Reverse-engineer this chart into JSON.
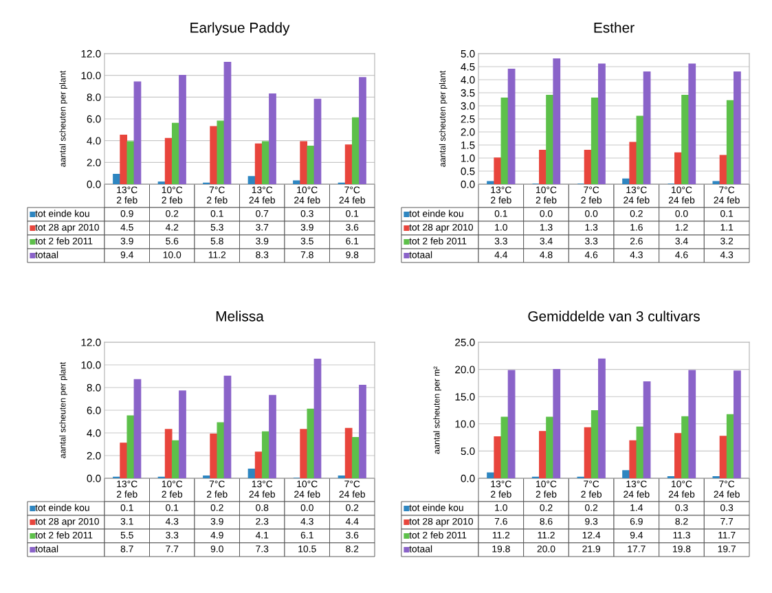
{
  "chart_data": [
    {
      "type": "bar",
      "title": "Earlysue Paddy",
      "ylabel": "aantal scheuten per plant",
      "categories": [
        "13°C\n2 feb",
        "10°C\n2 feb",
        "7°C\n2 feb",
        "13°C\n24 feb",
        "10°C\n24 feb",
        "7°C\n24 feb"
      ],
      "ylim": [
        0,
        12
      ],
      "yticks": [
        {
          "value": 0,
          "label": "0.0"
        },
        {
          "value": 2,
          "label": "2.0"
        },
        {
          "value": 4,
          "label": "4.0"
        },
        {
          "value": 6,
          "label": "6.0"
        },
        {
          "value": 8,
          "label": "8.0"
        },
        {
          "value": 10,
          "label": "10.0"
        },
        {
          "value": 12,
          "label": "12.0"
        }
      ],
      "grid": "y",
      "legend": "bottom left",
      "series": [
        {
          "name": "tot einde kou",
          "color": "#2e86c1",
          "values": [
            0.9,
            0.2,
            0.1,
            0.7,
            0.3,
            0.1
          ],
          "value_labels": [
            "0.9",
            "0.2",
            "0.1",
            "0.7",
            "0.3",
            "0.1"
          ]
        },
        {
          "name": "tot 28 apr 2010",
          "color": "#e8453c",
          "values": [
            4.5,
            4.2,
            5.3,
            3.7,
            3.9,
            3.6
          ],
          "value_labels": [
            "4.5",
            "4.2",
            "5.3",
            "3.7",
            "3.9",
            "3.6"
          ]
        },
        {
          "name": "tot 2 feb 2011",
          "color": "#5dc04a",
          "values": [
            3.9,
            5.6,
            5.8,
            3.9,
            3.5,
            6.1
          ],
          "value_labels": [
            "3.9",
            "5.6",
            "5.8",
            "3.9",
            "3.5",
            "6.1"
          ]
        },
        {
          "name": "totaal",
          "color": "#8a63c9",
          "values": [
            9.4,
            10.0,
            11.2,
            8.3,
            7.8,
            9.8
          ],
          "value_labels": [
            "9.4",
            "10.0",
            "11.2",
            "8.3",
            "7.8",
            "9.8"
          ]
        }
      ]
    },
    {
      "type": "bar",
      "title": "Esther",
      "ylabel": "aantal scheuten per plant",
      "categories": [
        "13°C\n2 feb",
        "10°C\n2 feb",
        "7°C\n2 feb",
        "13°C\n24 feb",
        "10°C\n24 feb",
        "7°C\n24 feb"
      ],
      "ylim": [
        0,
        5
      ],
      "yticks": [
        {
          "value": 0,
          "label": "0.0"
        },
        {
          "value": 0.5,
          "label": "0.5"
        },
        {
          "value": 1,
          "label": "1.0"
        },
        {
          "value": 1.5,
          "label": "1.5"
        },
        {
          "value": 2,
          "label": "2.0"
        },
        {
          "value": 2.5,
          "label": "2.5"
        },
        {
          "value": 3,
          "label": "3.0"
        },
        {
          "value": 3.5,
          "label": "3.5"
        },
        {
          "value": 4,
          "label": "4.0"
        },
        {
          "value": 4.5,
          "label": "4.5"
        },
        {
          "value": 5,
          "label": "5.0"
        }
      ],
      "grid": "y",
      "legend": "bottom left",
      "series": [
        {
          "name": "tot einde kou",
          "color": "#2e86c1",
          "values": [
            0.1,
            0.0,
            0.0,
            0.2,
            0.0,
            0.1
          ],
          "value_labels": [
            "0.1",
            "0.0",
            "0.0",
            "0.2",
            "0.0",
            "0.1"
          ]
        },
        {
          "name": "tot 28 apr 2010",
          "color": "#e8453c",
          "values": [
            1.0,
            1.3,
            1.3,
            1.6,
            1.2,
            1.1
          ],
          "value_labels": [
            "1.0",
            "1.3",
            "1.3",
            "1.6",
            "1.2",
            "1.1"
          ]
        },
        {
          "name": "tot 2 feb 2011",
          "color": "#5dc04a",
          "values": [
            3.3,
            3.4,
            3.3,
            2.6,
            3.4,
            3.2
          ],
          "value_labels": [
            "3.3",
            "3.4",
            "3.3",
            "2.6",
            "3.4",
            "3.2"
          ]
        },
        {
          "name": "totaal",
          "color": "#8a63c9",
          "values": [
            4.4,
            4.8,
            4.6,
            4.3,
            4.6,
            4.3
          ],
          "value_labels": [
            "4.4",
            "4.8",
            "4.6",
            "4.3",
            "4.6",
            "4.3"
          ]
        }
      ]
    },
    {
      "type": "bar",
      "title": "Melissa",
      "ylabel": "aantal scheuten per plant",
      "categories": [
        "13°C\n2 feb",
        "10°C\n2 feb",
        "7°C\n2 feb",
        "13°C\n24 feb",
        "10°C\n24 feb",
        "7°C\n24 feb"
      ],
      "ylim": [
        0,
        12
      ],
      "yticks": [
        {
          "value": 0,
          "label": "0.0"
        },
        {
          "value": 2,
          "label": "2.0"
        },
        {
          "value": 4,
          "label": "4.0"
        },
        {
          "value": 6,
          "label": "6.0"
        },
        {
          "value": 8,
          "label": "8.0"
        },
        {
          "value": 10,
          "label": "10.0"
        },
        {
          "value": 12,
          "label": "12.0"
        }
      ],
      "grid": "y",
      "legend": "bottom left",
      "series": [
        {
          "name": "tot einde kou",
          "color": "#2e86c1",
          "values": [
            0.1,
            0.1,
            0.2,
            0.8,
            0.0,
            0.2
          ],
          "value_labels": [
            "0.1",
            "0.1",
            "0.2",
            "0.8",
            "0.0",
            "0.2"
          ]
        },
        {
          "name": "tot 28 apr 2010",
          "color": "#e8453c",
          "values": [
            3.1,
            4.3,
            3.9,
            2.3,
            4.3,
            4.4
          ],
          "value_labels": [
            "3.1",
            "4.3",
            "3.9",
            "2.3",
            "4.3",
            "4.4"
          ]
        },
        {
          "name": "tot 2 feb 2011",
          "color": "#5dc04a",
          "values": [
            5.5,
            3.3,
            4.9,
            4.1,
            6.1,
            3.6
          ],
          "value_labels": [
            "5.5",
            "3.3",
            "4.9",
            "4.1",
            "6.1",
            "3.6"
          ]
        },
        {
          "name": "totaal",
          "color": "#8a63c9",
          "values": [
            8.7,
            7.7,
            9.0,
            7.3,
            10.5,
            8.2
          ],
          "value_labels": [
            "8.7",
            "7.7",
            "9.0",
            "7.3",
            "10.5",
            "8.2"
          ]
        }
      ]
    },
    {
      "type": "bar",
      "title": "Gemiddelde van 3 cultivars",
      "ylabel": "aantal scheuten per m²",
      "categories": [
        "13°C\n2 feb",
        "10°C\n2 feb",
        "7°C\n2 feb",
        "13°C\n24 feb",
        "10°C\n24 feb",
        "7°C\n24 feb"
      ],
      "ylim": [
        0,
        25
      ],
      "yticks": [
        {
          "value": 0,
          "label": "0.0"
        },
        {
          "value": 5,
          "label": "5.0"
        },
        {
          "value": 10,
          "label": "10.0"
        },
        {
          "value": 15,
          "label": "15.0"
        },
        {
          "value": 20,
          "label": "20.0"
        },
        {
          "value": 25,
          "label": "25.0"
        }
      ],
      "grid": "y",
      "legend": "bottom left",
      "series": [
        {
          "name": "tot einde kou",
          "color": "#2e86c1",
          "values": [
            1.0,
            0.2,
            0.2,
            1.4,
            0.3,
            0.3
          ],
          "value_labels": [
            "1.0",
            "0.2",
            "0.2",
            "1.4",
            "0.3",
            "0.3"
          ]
        },
        {
          "name": "tot 28 apr 2010",
          "color": "#e8453c",
          "values": [
            7.6,
            8.6,
            9.3,
            6.9,
            8.2,
            7.7
          ],
          "value_labels": [
            "7.6",
            "8.6",
            "9.3",
            "6.9",
            "8.2",
            "7.7"
          ]
        },
        {
          "name": "tot 2 feb 2011",
          "color": "#5dc04a",
          "values": [
            11.2,
            11.2,
            12.4,
            9.4,
            11.3,
            11.7
          ],
          "value_labels": [
            "11.2",
            "11.2",
            "12.4",
            "9.4",
            "11.3",
            "11.7"
          ]
        },
        {
          "name": "totaal",
          "color": "#8a63c9",
          "values": [
            19.8,
            20.0,
            21.9,
            17.7,
            19.8,
            19.7
          ],
          "value_labels": [
            "19.8",
            "20.0",
            "21.9",
            "17.7",
            "19.8",
            "19.7"
          ]
        }
      ]
    }
  ]
}
